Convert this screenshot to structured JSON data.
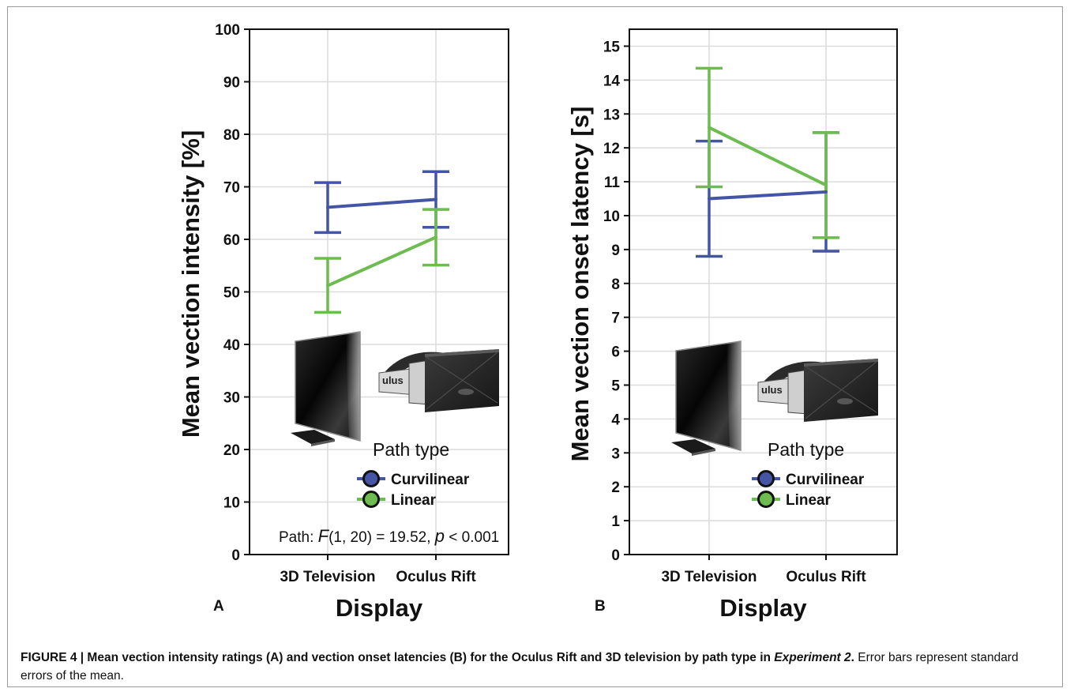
{
  "chart_data": [
    {
      "panel": "A",
      "type": "line",
      "xlabel": "Display",
      "ylabel": "Mean vection intensity [%]",
      "categories": [
        "3D Television",
        "Oculus Rift"
      ],
      "ylim": [
        0,
        100
      ],
      "yticks": [
        0,
        10,
        20,
        30,
        40,
        50,
        60,
        70,
        80,
        90,
        100
      ],
      "grid": true,
      "legend": {
        "title": "Path type",
        "placement": "lower-right"
      },
      "series": [
        {
          "name": "Curvilinear",
          "color": "#4455a6",
          "values": [
            66.1,
            67.6
          ],
          "err_low": [
            61.3,
            62.3
          ],
          "err_high": [
            70.8,
            72.9
          ]
        },
        {
          "name": "Linear",
          "color": "#6cbc4f",
          "values": [
            51.2,
            60.4
          ],
          "err_low": [
            46.1,
            55.1
          ],
          "err_high": [
            56.4,
            65.7
          ]
        }
      ],
      "annotation": {
        "prefix": "Path: ",
        "f_symbol": "F",
        "f_args": "(1, 20) = 19.52, ",
        "p_symbol": "p",
        "p_rest": " < 0.001"
      }
    },
    {
      "panel": "B",
      "type": "line",
      "xlabel": "Display",
      "ylabel": "Mean vection onset latency [s]",
      "categories": [
        "3D Television",
        "Oculus Rift"
      ],
      "ylim": [
        0,
        15
      ],
      "yticks": [
        0,
        1,
        2,
        3,
        4,
        5,
        6,
        7,
        8,
        9,
        10,
        11,
        12,
        13,
        14,
        15
      ],
      "grid": true,
      "legend": {
        "title": "Path type",
        "placement": "lower-right"
      },
      "series": [
        {
          "name": "Curvilinear",
          "color": "#4455a6",
          "values": [
            10.5,
            10.7
          ],
          "err_low": [
            8.8,
            8.95
          ],
          "err_high": [
            12.2,
            12.45
          ]
        },
        {
          "name": "Linear",
          "color": "#6cbc4f",
          "values": [
            12.6,
            10.9
          ],
          "err_low": [
            10.85,
            9.35
          ],
          "err_high": [
            14.35,
            12.45
          ]
        }
      ]
    }
  ],
  "caption": {
    "lead": "FIGURE 4 | Mean vection intensity ratings (A) and vection onset latencies (B) for the Oculus Rift and 3D television by path type in ",
    "italic": "Experiment 2",
    "lead_end": ".",
    "rest": " Error bars represent standard errors of the mean."
  },
  "icons": [
    "television-icon",
    "vr-headset-icon"
  ],
  "headset_text": "ulus"
}
